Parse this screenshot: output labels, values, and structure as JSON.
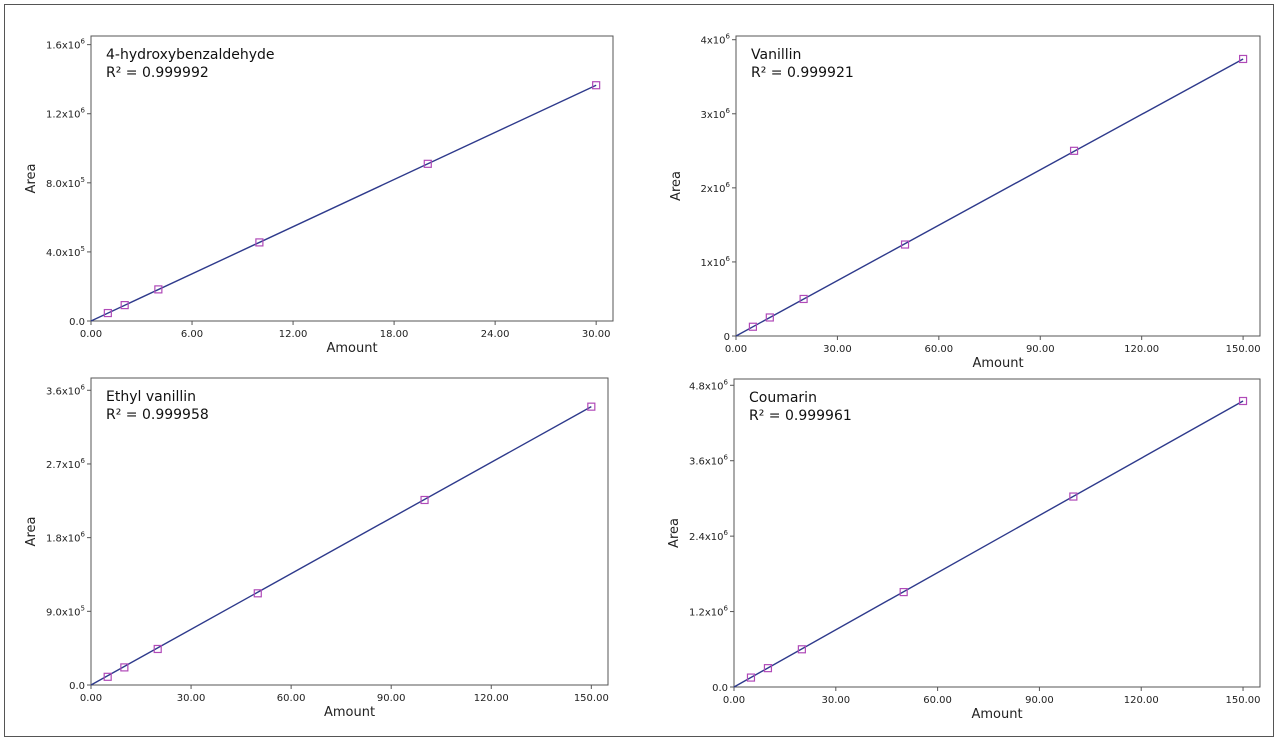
{
  "colors": {
    "fit_line": "#2e3a8c",
    "marker": "#b04ab8",
    "axes": "#555555"
  },
  "chart_data": [
    {
      "type": "scatter",
      "title": "4-hydroxybenzaldehyde",
      "subtitle": "R² = 0.999992",
      "xlabel": "Amount",
      "ylabel": "Area",
      "xlim": [
        0,
        31
      ],
      "ylim": [
        0,
        1650000
      ],
      "xticks": [
        0,
        6,
        12,
        18,
        24,
        30
      ],
      "xtick_labels": [
        "0.00",
        "6.00",
        "12.00",
        "18.00",
        "24.00",
        "30.00"
      ],
      "yticks": [
        0,
        400000,
        800000,
        1200000,
        1600000
      ],
      "ytick_labels": [
        {
          "base": "0.0",
          "exp": ""
        },
        {
          "base": "4.0x10",
          "exp": "5"
        },
        {
          "base": "8.0x10",
          "exp": "5"
        },
        {
          "base": "1.2x10",
          "exp": "6"
        },
        {
          "base": "1.6x10",
          "exp": "6"
        }
      ],
      "points": [
        {
          "x": 1.0,
          "y": 46000
        },
        {
          "x": 2.0,
          "y": 92000
        },
        {
          "x": 4.0,
          "y": 183000
        },
        {
          "x": 10.0,
          "y": 455000
        },
        {
          "x": 20.0,
          "y": 910000
        },
        {
          "x": 30.0,
          "y": 1365000
        }
      ],
      "fit": {
        "x": [
          0,
          30.0
        ],
        "y": [
          0,
          1365000
        ]
      },
      "grid": false
    },
    {
      "type": "scatter",
      "title": "Vanillin",
      "subtitle": "R² = 0.999921",
      "xlabel": "Amount",
      "ylabel": "Area",
      "xlim": [
        0,
        155
      ],
      "ylim": [
        0,
        4050000
      ],
      "xticks": [
        0,
        30,
        60,
        90,
        120,
        150
      ],
      "xtick_labels": [
        "0.00",
        "30.00",
        "60.00",
        "90.00",
        "120.00",
        "150.00"
      ],
      "yticks": [
        0,
        1000000,
        2000000,
        3000000,
        4000000
      ],
      "ytick_labels": [
        {
          "base": "0",
          "exp": ""
        },
        {
          "base": "1x10",
          "exp": "6"
        },
        {
          "base": "2x10",
          "exp": "6"
        },
        {
          "base": "3x10",
          "exp": "6"
        },
        {
          "base": "4x10",
          "exp": "6"
        }
      ],
      "points": [
        {
          "x": 5,
          "y": 125000
        },
        {
          "x": 10,
          "y": 250000
        },
        {
          "x": 20,
          "y": 500000
        },
        {
          "x": 50,
          "y": 1235000
        },
        {
          "x": 100,
          "y": 2500000
        },
        {
          "x": 150,
          "y": 3740000
        }
      ],
      "fit": {
        "x": [
          0,
          150
        ],
        "y": [
          0,
          3740000
        ]
      },
      "grid": false
    },
    {
      "type": "scatter",
      "title": "Ethyl vanillin",
      "subtitle": "R² = 0.999958",
      "xlabel": "Amount",
      "ylabel": "Area",
      "xlim": [
        0,
        155
      ],
      "ylim": [
        0,
        3750000
      ],
      "xticks": [
        0,
        30,
        60,
        90,
        120,
        150
      ],
      "xtick_labels": [
        "0.00",
        "30.00",
        "60.00",
        "90.00",
        "120.00",
        "150.00"
      ],
      "yticks": [
        0,
        900000,
        1800000,
        2700000,
        3600000
      ],
      "ytick_labels": [
        {
          "base": "0.0",
          "exp": ""
        },
        {
          "base": "9.0x10",
          "exp": "5"
        },
        {
          "base": "1.8x10",
          "exp": "6"
        },
        {
          "base": "2.7x10",
          "exp": "6"
        },
        {
          "base": "3.6x10",
          "exp": "6"
        }
      ],
      "points": [
        {
          "x": 5,
          "y": 100000
        },
        {
          "x": 10,
          "y": 215000
        },
        {
          "x": 20,
          "y": 440000
        },
        {
          "x": 50,
          "y": 1120000
        },
        {
          "x": 100,
          "y": 2260000
        },
        {
          "x": 150,
          "y": 3400000
        }
      ],
      "fit": {
        "x": [
          0,
          150
        ],
        "y": [
          0,
          3400000
        ]
      },
      "grid": false
    },
    {
      "type": "scatter",
      "title": "Coumarin",
      "subtitle": "R² = 0.999961",
      "xlabel": "Amount",
      "ylabel": "Area",
      "xlim": [
        0,
        155
      ],
      "ylim": [
        0,
        4900000
      ],
      "xticks": [
        0,
        30,
        60,
        90,
        120,
        150
      ],
      "xtick_labels": [
        "0.00",
        "30.00",
        "60.00",
        "90.00",
        "120.00",
        "150.00"
      ],
      "yticks": [
        0,
        1200000,
        2400000,
        3600000,
        4800000
      ],
      "ytick_labels": [
        {
          "base": "0.0",
          "exp": ""
        },
        {
          "base": "1.2x10",
          "exp": "6"
        },
        {
          "base": "2.4x10",
          "exp": "6"
        },
        {
          "base": "3.6x10",
          "exp": "6"
        },
        {
          "base": "4.8x10",
          "exp": "6"
        }
      ],
      "points": [
        {
          "x": 5,
          "y": 150000
        },
        {
          "x": 10,
          "y": 300000
        },
        {
          "x": 20,
          "y": 600000
        },
        {
          "x": 50,
          "y": 1510000
        },
        {
          "x": 100,
          "y": 3030000
        },
        {
          "x": 150,
          "y": 4550000
        }
      ],
      "fit": {
        "x": [
          0,
          150
        ],
        "y": [
          0,
          4550000
        ]
      },
      "grid": false
    }
  ]
}
